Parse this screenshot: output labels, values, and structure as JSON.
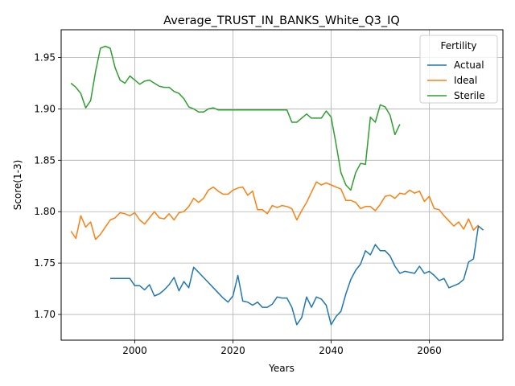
{
  "chart_data": {
    "type": "line",
    "title": "Average_TRUST_IN_BANKS_White_Q3_IQ",
    "xlabel": "Years",
    "ylabel": "Score(1-3)",
    "xlim": [
      1985,
      2075
    ],
    "ylim": [
      1.675,
      1.977
    ],
    "xticks": [
      2000,
      2020,
      2040,
      2060
    ],
    "yticks": [
      1.7,
      1.75,
      1.8,
      1.85,
      1.9,
      1.95
    ],
    "grid": true,
    "legend": {
      "title": "Fertility",
      "placement": "top-right"
    },
    "series": [
      {
        "name": "Actual",
        "color": "#1f77b4",
        "points": [
          [
            1995,
            1.735
          ],
          [
            1996,
            1.735
          ],
          [
            1997,
            1.735
          ],
          [
            1998,
            1.735
          ],
          [
            1999,
            1.735
          ],
          [
            2000,
            1.728
          ],
          [
            2001,
            1.728
          ],
          [
            2002,
            1.724
          ],
          [
            2003,
            1.729
          ],
          [
            2004,
            1.718
          ],
          [
            2005,
            1.72
          ],
          [
            2006,
            1.724
          ],
          [
            2007,
            1.729
          ],
          [
            2008,
            1.736
          ],
          [
            2009,
            1.723
          ],
          [
            2010,
            1.732
          ],
          [
            2011,
            1.726
          ],
          [
            2012,
            1.746
          ],
          [
            2013,
            1.741
          ],
          [
            2014,
            1.736
          ],
          [
            2015,
            1.731
          ],
          [
            2016,
            1.726
          ],
          [
            2017,
            1.721
          ],
          [
            2018,
            1.716
          ],
          [
            2019,
            1.712
          ],
          [
            2020,
            1.718
          ],
          [
            2021,
            1.738
          ],
          [
            2022,
            1.713
          ],
          [
            2023,
            1.712
          ],
          [
            2024,
            1.709
          ],
          [
            2025,
            1.712
          ],
          [
            2026,
            1.707
          ],
          [
            2027,
            1.707
          ],
          [
            2028,
            1.71
          ],
          [
            2029,
            1.717
          ],
          [
            2030,
            1.716
          ],
          [
            2031,
            1.716
          ],
          [
            2032,
            1.707
          ],
          [
            2033,
            1.69
          ],
          [
            2034,
            1.697
          ],
          [
            2035,
            1.717
          ],
          [
            2036,
            1.707
          ],
          [
            2037,
            1.717
          ],
          [
            2038,
            1.715
          ],
          [
            2039,
            1.709
          ],
          [
            2040,
            1.69
          ],
          [
            2041,
            1.698
          ],
          [
            2042,
            1.703
          ],
          [
            2043,
            1.72
          ],
          [
            2044,
            1.734
          ],
          [
            2045,
            1.743
          ],
          [
            2046,
            1.749
          ],
          [
            2047,
            1.762
          ],
          [
            2048,
            1.758
          ],
          [
            2049,
            1.768
          ],
          [
            2050,
            1.762
          ],
          [
            2051,
            1.762
          ],
          [
            2052,
            1.757
          ],
          [
            2053,
            1.747
          ],
          [
            2054,
            1.74
          ],
          [
            2055,
            1.742
          ],
          [
            2056,
            1.741
          ],
          [
            2057,
            1.74
          ],
          [
            2058,
            1.747
          ],
          [
            2059,
            1.74
          ],
          [
            2060,
            1.742
          ],
          [
            2061,
            1.738
          ],
          [
            2062,
            1.733
          ],
          [
            2063,
            1.735
          ],
          [
            2064,
            1.726
          ],
          [
            2065,
            1.728
          ],
          [
            2066,
            1.73
          ],
          [
            2067,
            1.734
          ],
          [
            2068,
            1.751
          ],
          [
            2069,
            1.754
          ],
          [
            2070,
            1.786
          ],
          [
            2071,
            1.782
          ]
        ]
      },
      {
        "name": "Ideal",
        "color": "#ff7f0e",
        "points": [
          [
            1987,
            1.781
          ],
          [
            1988,
            1.774
          ],
          [
            1989,
            1.796
          ],
          [
            1990,
            1.785
          ],
          [
            1991,
            1.79
          ],
          [
            1992,
            1.773
          ],
          [
            1993,
            1.778
          ],
          [
            1994,
            1.785
          ],
          [
            1995,
            1.792
          ],
          [
            1996,
            1.794
          ],
          [
            1997,
            1.799
          ],
          [
            1998,
            1.798
          ],
          [
            1999,
            1.796
          ],
          [
            2000,
            1.799
          ],
          [
            2001,
            1.792
          ],
          [
            2002,
            1.788
          ],
          [
            2003,
            1.794
          ],
          [
            2004,
            1.8
          ],
          [
            2005,
            1.794
          ],
          [
            2006,
            1.793
          ],
          [
            2007,
            1.798
          ],
          [
            2008,
            1.792
          ],
          [
            2009,
            1.799
          ],
          [
            2010,
            1.8
          ],
          [
            2011,
            1.805
          ],
          [
            2012,
            1.813
          ],
          [
            2013,
            1.809
          ],
          [
            2014,
            1.813
          ],
          [
            2015,
            1.821
          ],
          [
            2016,
            1.824
          ],
          [
            2017,
            1.82
          ],
          [
            2018,
            1.817
          ],
          [
            2019,
            1.817
          ],
          [
            2020,
            1.821
          ],
          [
            2021,
            1.823
          ],
          [
            2022,
            1.824
          ],
          [
            2023,
            1.816
          ],
          [
            2024,
            1.82
          ],
          [
            2025,
            1.802
          ],
          [
            2026,
            1.802
          ],
          [
            2027,
            1.798
          ],
          [
            2028,
            1.806
          ],
          [
            2029,
            1.804
          ],
          [
            2030,
            1.806
          ],
          [
            2031,
            1.805
          ],
          [
            2032,
            1.803
          ],
          [
            2033,
            1.792
          ],
          [
            2034,
            1.801
          ],
          [
            2035,
            1.809
          ],
          [
            2036,
            1.819
          ],
          [
            2037,
            1.829
          ],
          [
            2038,
            1.826
          ],
          [
            2039,
            1.828
          ],
          [
            2040,
            1.826
          ],
          [
            2041,
            1.824
          ],
          [
            2042,
            1.822
          ],
          [
            2043,
            1.811
          ],
          [
            2044,
            1.811
          ],
          [
            2045,
            1.809
          ],
          [
            2046,
            1.803
          ],
          [
            2047,
            1.805
          ],
          [
            2048,
            1.805
          ],
          [
            2049,
            1.801
          ],
          [
            2050,
            1.807
          ],
          [
            2051,
            1.815
          ],
          [
            2052,
            1.816
          ],
          [
            2053,
            1.813
          ],
          [
            2054,
            1.818
          ],
          [
            2055,
            1.817
          ],
          [
            2056,
            1.821
          ],
          [
            2057,
            1.818
          ],
          [
            2058,
            1.82
          ],
          [
            2059,
            1.81
          ],
          [
            2060,
            1.815
          ],
          [
            2061,
            1.803
          ],
          [
            2062,
            1.802
          ],
          [
            2063,
            1.796
          ],
          [
            2064,
            1.791
          ],
          [
            2065,
            1.786
          ],
          [
            2066,
            1.79
          ],
          [
            2067,
            1.783
          ],
          [
            2068,
            1.793
          ],
          [
            2069,
            1.782
          ],
          [
            2070,
            1.787
          ]
        ]
      },
      {
        "name": "Sterile",
        "color": "#2ca02c",
        "points": [
          [
            1987,
            1.925
          ],
          [
            1988,
            1.921
          ],
          [
            1989,
            1.915
          ],
          [
            1990,
            1.901
          ],
          [
            1991,
            1.908
          ],
          [
            1992,
            1.936
          ],
          [
            1993,
            1.959
          ],
          [
            1994,
            1.961
          ],
          [
            1995,
            1.959
          ],
          [
            1996,
            1.94
          ],
          [
            1997,
            1.928
          ],
          [
            1998,
            1.925
          ],
          [
            1999,
            1.932
          ],
          [
            2000,
            1.928
          ],
          [
            2001,
            1.924
          ],
          [
            2002,
            1.927
          ],
          [
            2003,
            1.928
          ],
          [
            2004,
            1.925
          ],
          [
            2005,
            1.922
          ],
          [
            2006,
            1.921
          ],
          [
            2007,
            1.921
          ],
          [
            2008,
            1.917
          ],
          [
            2009,
            1.915
          ],
          [
            2010,
            1.91
          ],
          [
            2011,
            1.902
          ],
          [
            2012,
            1.9
          ],
          [
            2013,
            1.897
          ],
          [
            2014,
            1.897
          ],
          [
            2015,
            1.9
          ],
          [
            2016,
            1.901
          ],
          [
            2017,
            1.899
          ],
          [
            2018,
            1.899
          ],
          [
            2019,
            1.899
          ],
          [
            2020,
            1.899
          ],
          [
            2021,
            1.899
          ],
          [
            2022,
            1.899
          ],
          [
            2023,
            1.899
          ],
          [
            2024,
            1.899
          ],
          [
            2025,
            1.899
          ],
          [
            2026,
            1.899
          ],
          [
            2027,
            1.899
          ],
          [
            2028,
            1.899
          ],
          [
            2029,
            1.899
          ],
          [
            2030,
            1.899
          ],
          [
            2031,
            1.899
          ],
          [
            2032,
            1.887
          ],
          [
            2033,
            1.887
          ],
          [
            2034,
            1.891
          ],
          [
            2035,
            1.895
          ],
          [
            2036,
            1.891
          ],
          [
            2037,
            1.891
          ],
          [
            2038,
            1.891
          ],
          [
            2039,
            1.898
          ],
          [
            2040,
            1.892
          ],
          [
            2041,
            1.866
          ],
          [
            2042,
            1.838
          ],
          [
            2043,
            1.826
          ],
          [
            2044,
            1.821
          ],
          [
            2045,
            1.838
          ],
          [
            2046,
            1.847
          ],
          [
            2047,
            1.846
          ],
          [
            2048,
            1.892
          ],
          [
            2049,
            1.887
          ],
          [
            2050,
            1.904
          ],
          [
            2051,
            1.902
          ],
          [
            2052,
            1.894
          ],
          [
            2053,
            1.875
          ],
          [
            2054,
            1.885
          ]
        ]
      }
    ]
  }
}
